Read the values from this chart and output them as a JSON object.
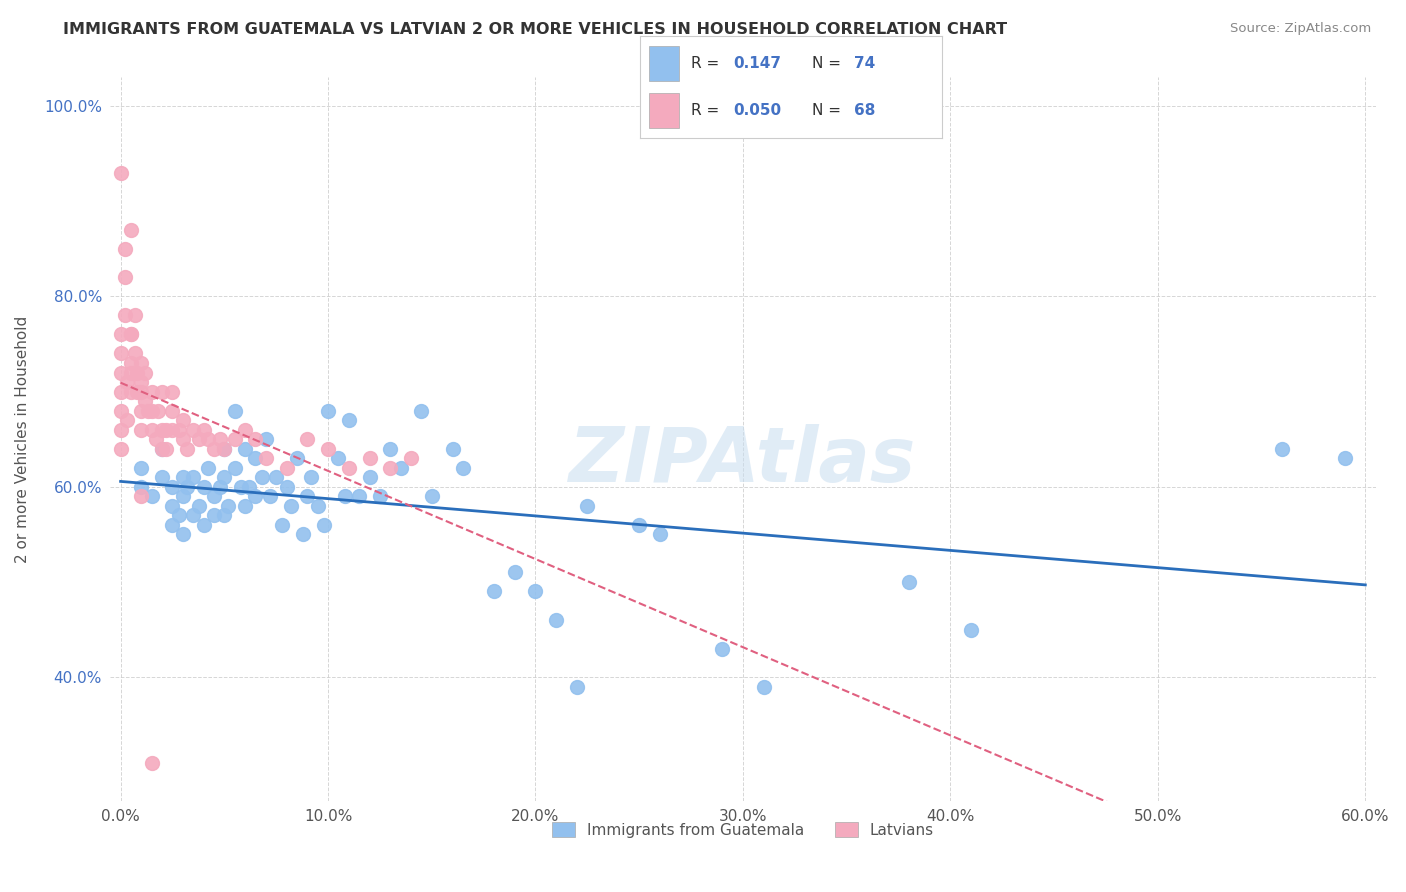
{
  "title": "IMMIGRANTS FROM GUATEMALA VS LATVIAN 2 OR MORE VEHICLES IN HOUSEHOLD CORRELATION CHART",
  "source": "Source: ZipAtlas.com",
  "ylabel": "2 or more Vehicles in Household",
  "xlim": [
    -0.005,
    0.605
  ],
  "ylim": [
    0.27,
    1.03
  ],
  "xticks": [
    0.0,
    0.1,
    0.2,
    0.3,
    0.4,
    0.5,
    0.6
  ],
  "xticklabels": [
    "0.0%",
    "10.0%",
    "20.0%",
    "30.0%",
    "40.0%",
    "50.0%",
    "60.0%"
  ],
  "yticks": [
    0.4,
    0.6,
    0.8,
    1.0
  ],
  "yticklabels": [
    "40.0%",
    "60.0%",
    "80.0%",
    "100.0%"
  ],
  "blue_R": 0.147,
  "blue_N": 74,
  "pink_R": 0.05,
  "pink_N": 68,
  "blue_color": "#92C0EE",
  "pink_color": "#F4AABE",
  "blue_line_color": "#2a6ebb",
  "pink_line_color": "#e06080",
  "legend_label_blue": "Immigrants from Guatemala",
  "legend_label_pink": "Latvians",
  "watermark": "ZIPAtlas",
  "blue_scatter_x": [
    0.01,
    0.01,
    0.015,
    0.02,
    0.02,
    0.025,
    0.025,
    0.025,
    0.028,
    0.03,
    0.03,
    0.03,
    0.032,
    0.035,
    0.035,
    0.038,
    0.04,
    0.04,
    0.042,
    0.045,
    0.045,
    0.048,
    0.05,
    0.05,
    0.05,
    0.052,
    0.055,
    0.055,
    0.058,
    0.06,
    0.06,
    0.062,
    0.065,
    0.065,
    0.068,
    0.07,
    0.072,
    0.075,
    0.078,
    0.08,
    0.082,
    0.085,
    0.088,
    0.09,
    0.092,
    0.095,
    0.098,
    0.1,
    0.105,
    0.108,
    0.11,
    0.115,
    0.12,
    0.125,
    0.13,
    0.135,
    0.145,
    0.15,
    0.16,
    0.165,
    0.18,
    0.19,
    0.2,
    0.21,
    0.22,
    0.225,
    0.25,
    0.26,
    0.29,
    0.31,
    0.38,
    0.41,
    0.56,
    0.59
  ],
  "blue_scatter_y": [
    0.62,
    0.6,
    0.59,
    0.61,
    0.64,
    0.6,
    0.58,
    0.56,
    0.57,
    0.61,
    0.59,
    0.55,
    0.6,
    0.61,
    0.57,
    0.58,
    0.6,
    0.56,
    0.62,
    0.59,
    0.57,
    0.6,
    0.64,
    0.61,
    0.57,
    0.58,
    0.68,
    0.62,
    0.6,
    0.64,
    0.58,
    0.6,
    0.63,
    0.59,
    0.61,
    0.65,
    0.59,
    0.61,
    0.56,
    0.6,
    0.58,
    0.63,
    0.55,
    0.59,
    0.61,
    0.58,
    0.56,
    0.68,
    0.63,
    0.59,
    0.67,
    0.59,
    0.61,
    0.59,
    0.64,
    0.62,
    0.68,
    0.59,
    0.64,
    0.62,
    0.49,
    0.51,
    0.49,
    0.46,
    0.39,
    0.58,
    0.56,
    0.55,
    0.43,
    0.39,
    0.5,
    0.45,
    0.64,
    0.63
  ],
  "pink_scatter_x": [
    0.0,
    0.0,
    0.0,
    0.0,
    0.0,
    0.0,
    0.0,
    0.002,
    0.002,
    0.002,
    0.003,
    0.003,
    0.005,
    0.005,
    0.005,
    0.005,
    0.005,
    0.007,
    0.007,
    0.008,
    0.008,
    0.01,
    0.01,
    0.01,
    0.01,
    0.01,
    0.012,
    0.012,
    0.013,
    0.015,
    0.015,
    0.015,
    0.017,
    0.018,
    0.02,
    0.02,
    0.02,
    0.022,
    0.022,
    0.025,
    0.025,
    0.025,
    0.028,
    0.03,
    0.03,
    0.032,
    0.035,
    0.038,
    0.04,
    0.042,
    0.045,
    0.048,
    0.05,
    0.055,
    0.06,
    0.065,
    0.07,
    0.08,
    0.09,
    0.1,
    0.11,
    0.12,
    0.13,
    0.14,
    0.0,
    0.005,
    0.01,
    0.015
  ],
  "pink_scatter_y": [
    0.68,
    0.66,
    0.72,
    0.7,
    0.74,
    0.76,
    0.64,
    0.85,
    0.82,
    0.78,
    0.71,
    0.67,
    0.76,
    0.73,
    0.7,
    0.76,
    0.72,
    0.78,
    0.74,
    0.72,
    0.7,
    0.73,
    0.71,
    0.68,
    0.7,
    0.66,
    0.72,
    0.69,
    0.68,
    0.7,
    0.66,
    0.68,
    0.65,
    0.68,
    0.66,
    0.64,
    0.7,
    0.66,
    0.64,
    0.66,
    0.68,
    0.7,
    0.66,
    0.65,
    0.67,
    0.64,
    0.66,
    0.65,
    0.66,
    0.65,
    0.64,
    0.65,
    0.64,
    0.65,
    0.66,
    0.65,
    0.63,
    0.62,
    0.65,
    0.64,
    0.62,
    0.63,
    0.62,
    0.63,
    0.93,
    0.87,
    0.59,
    0.31
  ]
}
